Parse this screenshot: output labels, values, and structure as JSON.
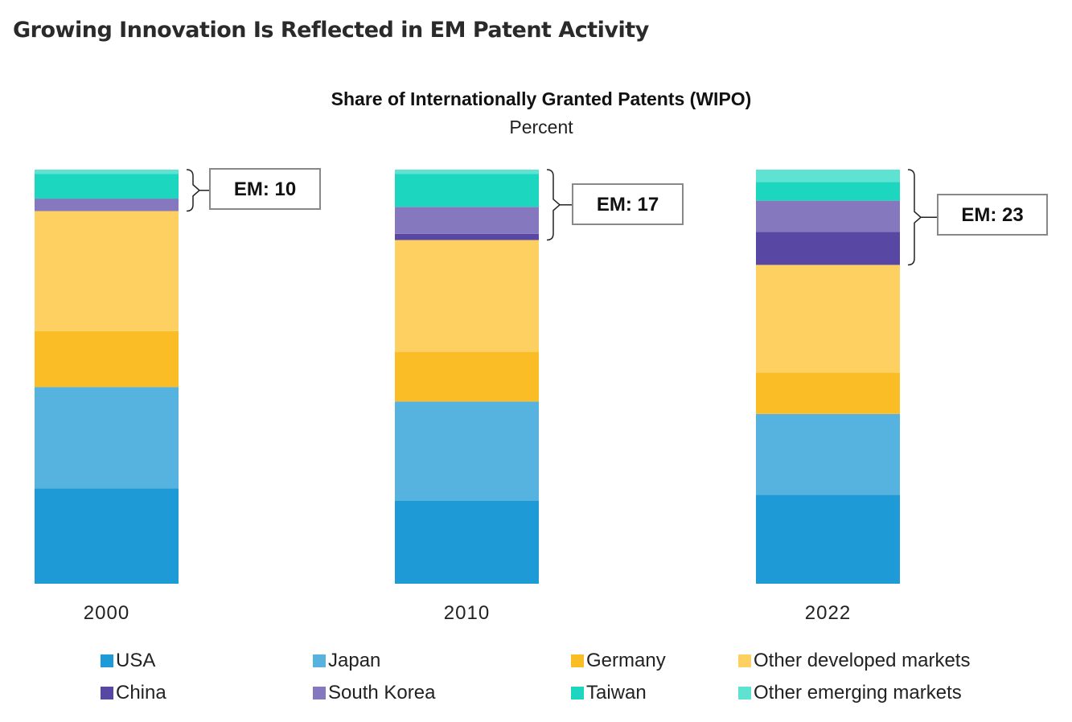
{
  "page_title": "Growing Innovation Is Reflected in EM Patent Activity",
  "chart_data": {
    "type": "bar",
    "stacked": true,
    "title": "Share of Internationally Granted Patents (WIPO)",
    "subtitle": "Percent",
    "xlabel": "",
    "ylabel": "",
    "ylim": [
      0,
      100
    ],
    "grid": false,
    "legend_position": "bottom",
    "categories": [
      "2000",
      "2010",
      "2022"
    ],
    "series": [
      {
        "name": "USA",
        "color": "#1e9ad6",
        "values": [
          23,
          20,
          21.5
        ]
      },
      {
        "name": "Japan",
        "color": "#56b3e0",
        "values": [
          24.5,
          24,
          19.5
        ]
      },
      {
        "name": "Germany",
        "color": "#fbbd26",
        "values": [
          13.5,
          12,
          10
        ]
      },
      {
        "name": "Other developed markets",
        "color": "#fdd061",
        "values": [
          29,
          27,
          26
        ]
      },
      {
        "name": "China",
        "color": "#5847a3",
        "values": [
          0,
          1.5,
          8
        ]
      },
      {
        "name": "South Korea",
        "color": "#8578bf",
        "values": [
          3,
          6.5,
          7.5
        ]
      },
      {
        "name": "Taiwan",
        "color": "#1dd6bf",
        "values": [
          6,
          8,
          4.5
        ]
      },
      {
        "name": "Other emerging markets",
        "color": "#5ee3d2",
        "values": [
          1,
          1,
          3
        ]
      }
    ],
    "annotations": [
      {
        "category": "2000",
        "text": "EM: 10"
      },
      {
        "category": "2010",
        "text": "EM: 17"
      },
      {
        "category": "2022",
        "text": "EM: 23"
      }
    ]
  }
}
